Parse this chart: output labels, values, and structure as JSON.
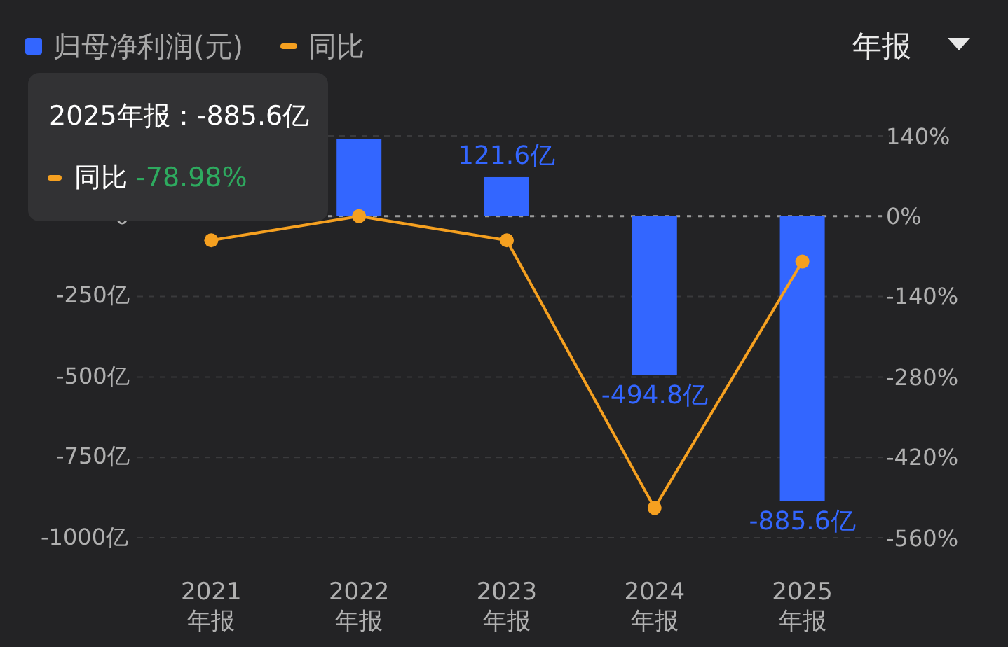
{
  "chart_data": {
    "type": "bar",
    "categories": [
      "2021 年报",
      "2022 年报",
      "2023 年报",
      "2024 年报",
      "2025 年报"
    ],
    "series": [
      {
        "name": "归母净利润(元)",
        "color": "#3366ff",
        "values": [
          null,
          240,
          121.6,
          -494.8,
          -885.6
        ],
        "value_labels": [
          null,
          null,
          "121.6亿",
          "-494.8亿",
          "-885.6亿"
        ]
      },
      {
        "name": "同比",
        "type": "line",
        "axis": "y2",
        "color": "#f5a020",
        "marker": "circle",
        "values": [
          -42,
          0,
          -42,
          -508,
          -78.98
        ]
      }
    ],
    "ylim": [
      -1000,
      250
    ],
    "yticks": [
      0,
      {
        "value": -250,
        "label": "-250亿"
      },
      {
        "value": -500,
        "label": "-500亿"
      },
      {
        "value": -750,
        "label": "-750亿"
      },
      {
        "value": -1000,
        "label": "-1000亿"
      }
    ],
    "y2lim": [
      -560,
      140
    ],
    "y2ticks": [
      {
        "value": 140,
        "label": "140%"
      },
      {
        "value": 0,
        "label": "0%"
      },
      {
        "value": -140,
        "label": "-140%"
      },
      {
        "value": -280,
        "label": "-280%"
      },
      {
        "value": -420,
        "label": "-420%"
      },
      {
        "value": -560,
        "label": "-560%"
      }
    ],
    "grid": "y",
    "ref_lines": [
      {
        "axis": "y2",
        "value": 0,
        "color": "#9a9a9a",
        "line_style": "dotted"
      }
    ],
    "legend": "top left",
    "annotations": [
      "2025年报：-885.6亿",
      "同比",
      "-78.98%",
      "年报"
    ]
  }
}
